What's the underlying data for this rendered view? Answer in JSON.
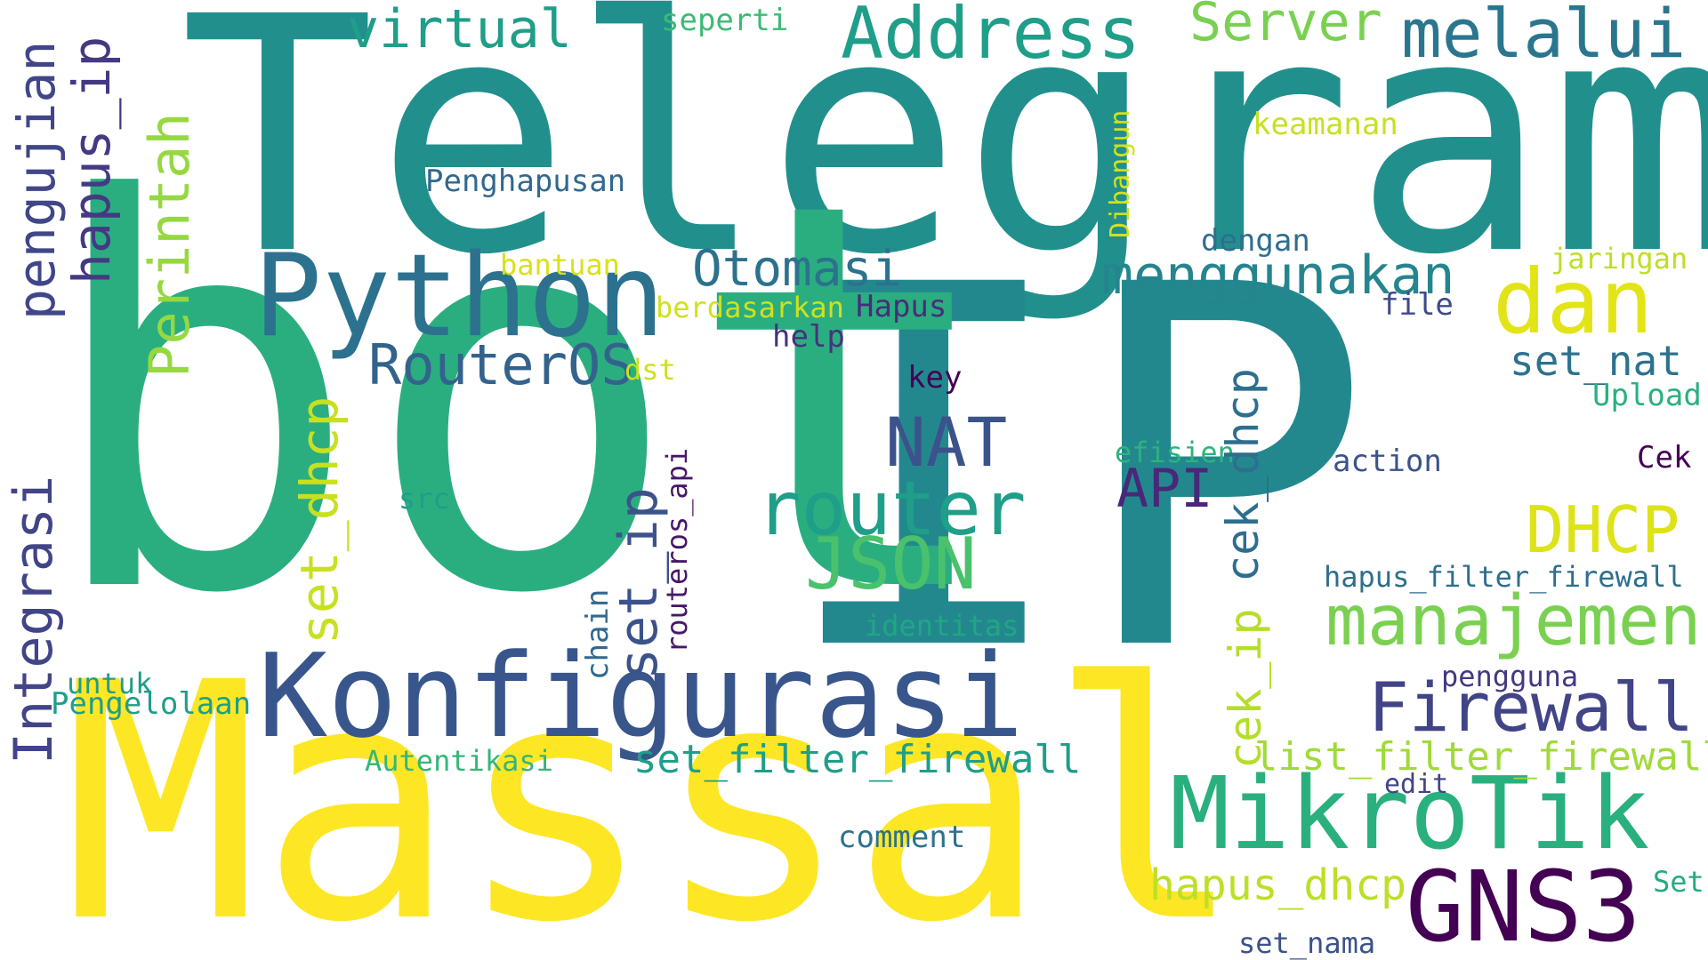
{
  "words": {
    "telegram": {
      "text": "Telegram",
      "color": "#21908d"
    },
    "ip": {
      "text": "IP",
      "color": "#23888e"
    },
    "bot": {
      "text": "bot",
      "color": "#2aae80"
    },
    "massal": {
      "text": "Massal",
      "color": "#fde725"
    },
    "konfigurasi": {
      "text": "Konfigurasi",
      "color": "#39568c"
    },
    "python": {
      "text": "Python",
      "color": "#2c728e"
    },
    "mikrotik": {
      "text": "MikroTik",
      "color": "#2ab07f"
    },
    "gns3": {
      "text": "GNS3",
      "color": "#440154"
    },
    "router": {
      "text": "router",
      "color": "#1f9e89"
    },
    "json": {
      "text": "JSON",
      "color": "#4ac16d"
    },
    "nat": {
      "text": "NAT",
      "color": "#3b528b"
    },
    "address": {
      "text": "Address",
      "color": "#1f9e89"
    },
    "melalui": {
      "text": "melalui",
      "color": "#2a768e"
    },
    "dan": {
      "text": "dan",
      "color": "#e3e418"
    },
    "manajemen": {
      "text": "manajemen",
      "color": "#7ad151"
    },
    "firewall": {
      "text": "Firewall",
      "color": "#414487"
    },
    "menggunakan": {
      "text": "menggunakan",
      "color": "#25858e"
    },
    "otomasi": {
      "text": "Otomasi",
      "color": "#2c728e"
    },
    "routeros": {
      "text": "RouterOS",
      "color": "#33638d"
    },
    "dhcp": {
      "text": "DHCP",
      "color": "#dde318"
    },
    "api": {
      "text": "API",
      "color": "#482878"
    },
    "virtual": {
      "text": "virtual",
      "color": "#1f9e89"
    },
    "server": {
      "text": "Server",
      "color": "#7ad151"
    },
    "seperti": {
      "text": "seperti",
      "color": "#3bbb75"
    },
    "set_filter_firewall": {
      "text": "set_filter_firewall",
      "color": "#1f9e89"
    },
    "list_filter_firewall": {
      "text": "list_filter_firewall",
      "color": "#a0da39"
    },
    "hapus_dhcp": {
      "text": "hapus_dhcp",
      "color": "#bddf26"
    },
    "set_nat": {
      "text": "set_nat",
      "color": "#2c728e"
    },
    "hapus_filter_firewall": {
      "text": "hapus_filter_firewall",
      "color": "#2e6e8e"
    },
    "penghapusan": {
      "text": "Penghapusan",
      "color": "#31688e"
    },
    "keamanan": {
      "text": "keamanan",
      "color": "#c8e020"
    },
    "dengan": {
      "text": "dengan",
      "color": "#2e6e8e"
    },
    "jaringan": {
      "text": "jaringan",
      "color": "#bddf26"
    },
    "bantuan": {
      "text": "bantuan",
      "color": "#d8e219"
    },
    "berdasarkan": {
      "text": "berdasarkan",
      "color": "#d0e11c"
    },
    "hapus": {
      "text": "Hapus",
      "color": "#472d7b"
    },
    "file": {
      "text": "file",
      "color": "#3e4a89"
    },
    "help": {
      "text": "help",
      "color": "#46327e"
    },
    "dst": {
      "text": "dst",
      "color": "#cde11d"
    },
    "key": {
      "text": "key",
      "color": "#440154"
    },
    "upload": {
      "text": "Upload",
      "color": "#2ab07f"
    },
    "efisien": {
      "text": "efisien",
      "color": "#2db27d"
    },
    "action": {
      "text": "action",
      "color": "#3b528b"
    },
    "cek": {
      "text": "Cek",
      "color": "#440154"
    },
    "src": {
      "text": "src",
      "color": "#1f9e89"
    },
    "identitas": {
      "text": "identitas",
      "color": "#21a685"
    },
    "untuk": {
      "text": "untuk",
      "color": "#1f9e89"
    },
    "pengelolaan": {
      "text": "Pengelolaan",
      "color": "#1f9e89"
    },
    "pengguna": {
      "text": "pengguna",
      "color": "#453781"
    },
    "autentikasi": {
      "text": "Autentikasi",
      "color": "#34b679"
    },
    "edit": {
      "text": "edit",
      "color": "#414487"
    },
    "comment": {
      "text": "comment",
      "color": "#2c728e"
    },
    "set": {
      "text": "Set",
      "color": "#25ab82"
    },
    "set_nama": {
      "text": "set_nama",
      "color": "#3b528b"
    },
    "pengujian": {
      "text": "pengujian",
      "color": "#404688"
    },
    "hapus_ip": {
      "text": "hapus_ip",
      "color": "#443983"
    },
    "perintah": {
      "text": "Perintah",
      "color": "#95d840"
    },
    "integrasi": {
      "text": "Integrasi",
      "color": "#414487"
    },
    "set_dhcp": {
      "text": "set_dhcp",
      "color": "#c8e020"
    },
    "set_ip": {
      "text": "set_ip",
      "color": "#3b528b"
    },
    "chain": {
      "text": "chain",
      "color": "#31688e"
    },
    "routeros_api": {
      "text": "routeros_api",
      "color": "#481769"
    },
    "cek_dhcp": {
      "text": "cek_dhcp",
      "color": "#2e6e8e"
    },
    "cek_ip": {
      "text": "cek_ip",
      "color": "#b5de2b"
    },
    "dibangun": {
      "text": "Dibangun",
      "color": "#d2e21b"
    }
  }
}
